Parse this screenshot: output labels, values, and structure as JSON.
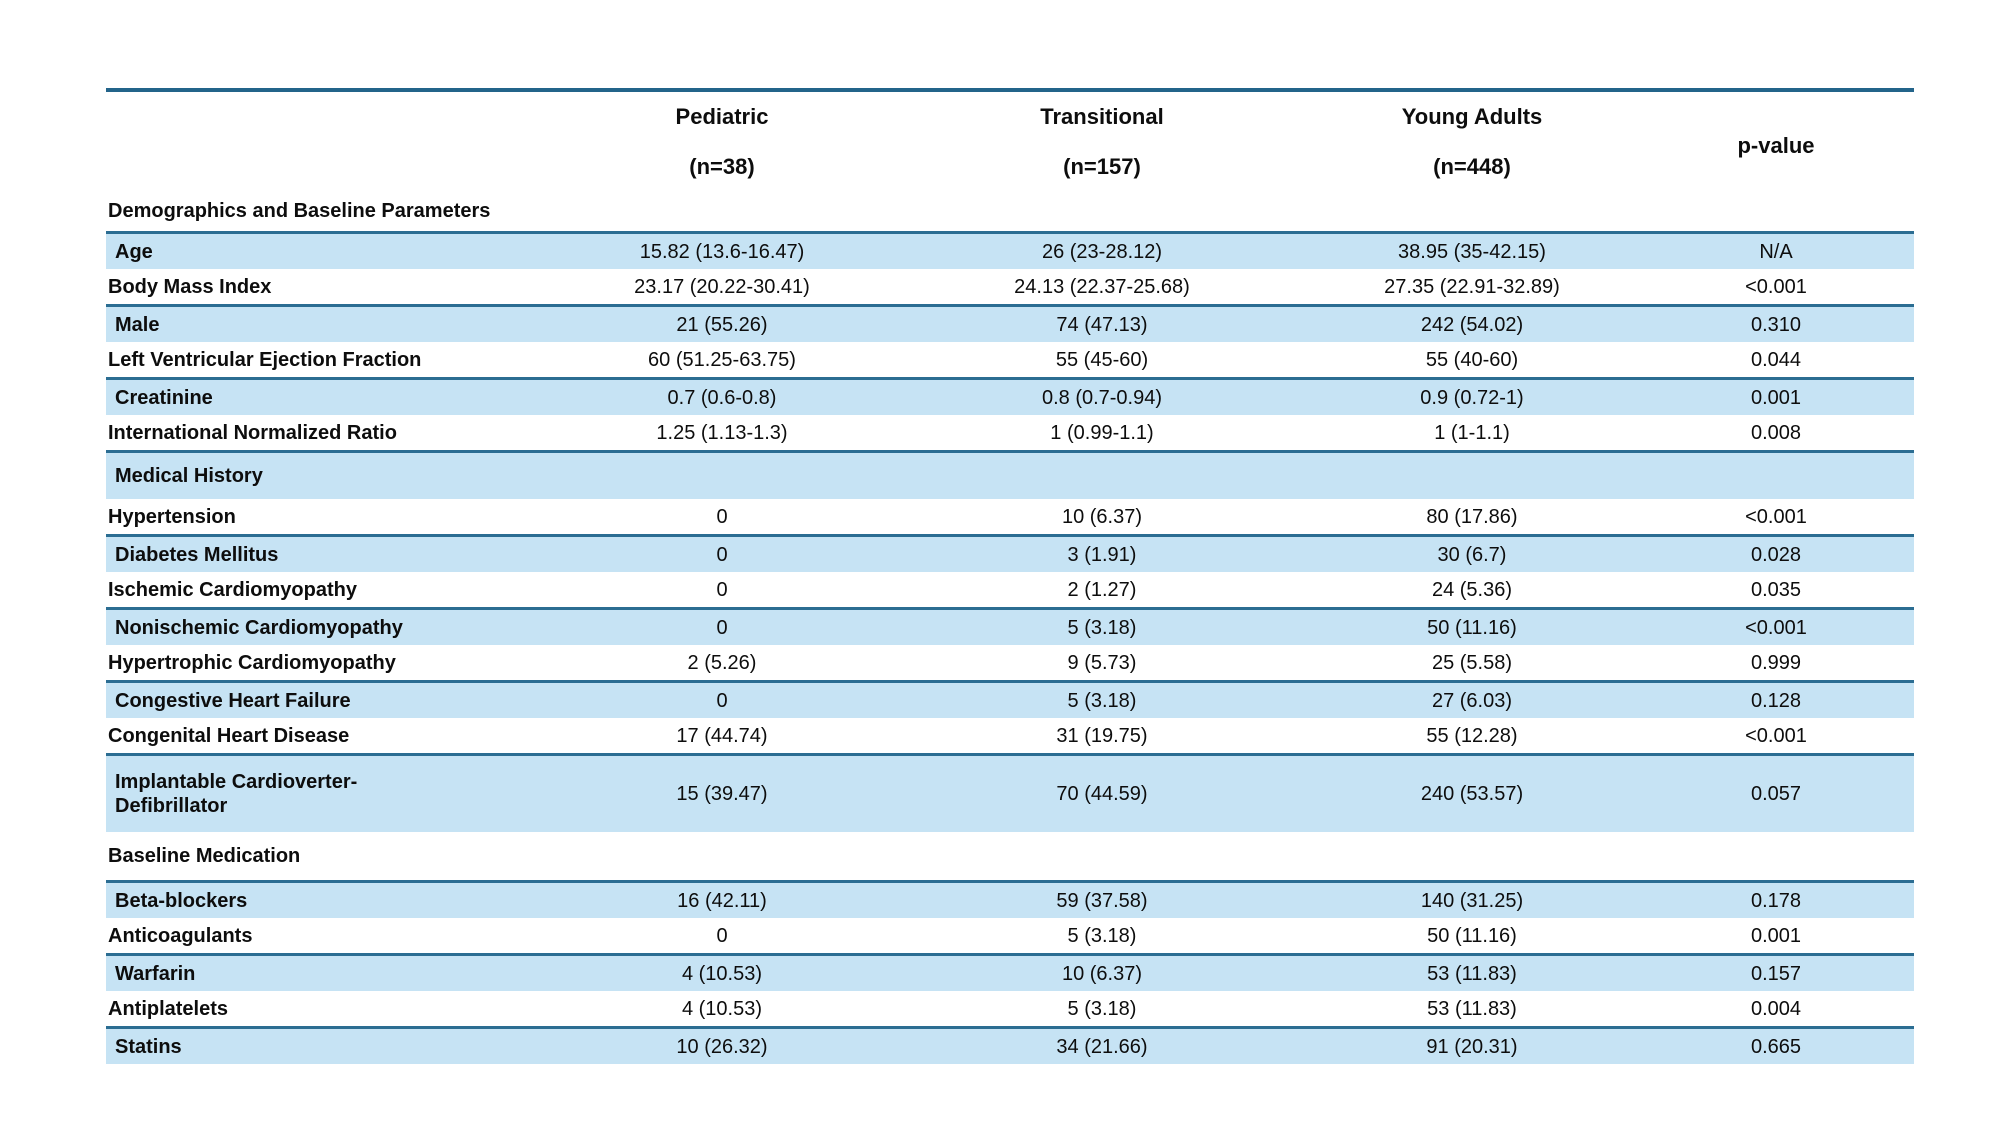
{
  "colors": {
    "row_stripe": "#c6e3f4",
    "rule": "#2b6d92",
    "top_rule": "#23648a",
    "text": "#0d0d0d",
    "background": "#ffffff"
  },
  "table": {
    "columns": [
      {
        "label": "Pediatric",
        "n": "(n=38)"
      },
      {
        "label": "Transitional",
        "n": "(n=157)"
      },
      {
        "label": "Young Adults",
        "n": "(n=448)"
      }
    ],
    "p_value_header": "p-value",
    "sections": [
      {
        "title": "Demographics and Baseline Parameters",
        "shade": "white",
        "rows": [
          {
            "label": "Age",
            "shade": "blue",
            "values": [
              "15.82 (13.6-16.47)",
              "26 (23-28.12)",
              "38.95 (35-42.15)",
              "N/A"
            ]
          },
          {
            "label": "Body Mass Index",
            "shade": "white",
            "values": [
              "23.17 (20.22-30.41)",
              "24.13 (22.37-25.68)",
              "27.35 (22.91-32.89)",
              "<0.001"
            ]
          },
          {
            "label": "Male",
            "shade": "blue",
            "values": [
              "21 (55.26)",
              "74 (47.13)",
              "242 (54.02)",
              "0.310"
            ]
          },
          {
            "label": "Left Ventricular Ejection Fraction",
            "shade": "white",
            "values": [
              "60 (51.25-63.75)",
              "55 (45-60)",
              "55 (40-60)",
              "0.044"
            ]
          },
          {
            "label": "Creatinine",
            "shade": "blue",
            "values": [
              "0.7 (0.6-0.8)",
              "0.8 (0.7-0.94)",
              "0.9 (0.72-1)",
              "0.001"
            ]
          },
          {
            "label": "International Normalized Ratio",
            "shade": "white",
            "values": [
              "1.25 (1.13-1.3)",
              "1 (0.99-1.1)",
              "1 (1-1.1)",
              "0.008"
            ]
          }
        ]
      },
      {
        "title": "Medical History",
        "shade": "blue",
        "rows": [
          {
            "label": "Hypertension",
            "shade": "white",
            "values": [
              "0",
              "10 (6.37)",
              "80 (17.86)",
              "<0.001"
            ]
          },
          {
            "label": "Diabetes Mellitus",
            "shade": "blue",
            "values": [
              "0",
              "3 (1.91)",
              "30 (6.7)",
              "0.028"
            ]
          },
          {
            "label": "Ischemic Cardiomyopathy",
            "shade": "white",
            "values": [
              "0",
              "2 (1.27)",
              "24 (5.36)",
              "0.035"
            ]
          },
          {
            "label": "Nonischemic Cardiomyopathy",
            "shade": "blue",
            "values": [
              "0",
              "5 (3.18)",
              "50 (11.16)",
              "<0.001"
            ]
          },
          {
            "label": "Hypertrophic Cardiomyopathy",
            "shade": "white",
            "values": [
              "2 (5.26)",
              "9 (5.73)",
              "25 (5.58)",
              "0.999"
            ]
          },
          {
            "label": "Congestive Heart Failure",
            "shade": "blue",
            "values": [
              "0",
              "5 (3.18)",
              "27 (6.03)",
              "0.128"
            ]
          },
          {
            "label": "Congenital Heart Disease",
            "shade": "white",
            "values": [
              "17 (44.74)",
              "31 (19.75)",
              "55 (12.28)",
              "<0.001"
            ]
          },
          {
            "label": "Implantable Cardioverter-\nDefibrillator",
            "shade": "blue",
            "tall": true,
            "values": [
              "15 (39.47)",
              "70 (44.59)",
              "240 (53.57)",
              "0.057"
            ]
          }
        ]
      },
      {
        "title": "Baseline Medication",
        "shade": "white-tall",
        "rows": [
          {
            "label": "Beta-blockers",
            "shade": "blue",
            "values": [
              "16 (42.11)",
              "59 (37.58)",
              "140 (31.25)",
              "0.178"
            ]
          },
          {
            "label": "Anticoagulants",
            "shade": "white",
            "values": [
              "0",
              "5 (3.18)",
              "50 (11.16)",
              "0.001"
            ]
          },
          {
            "label": "Warfarin",
            "shade": "blue",
            "values": [
              "4 (10.53)",
              "10 (6.37)",
              "53 (11.83)",
              "0.157"
            ]
          },
          {
            "label": "Antiplatelets",
            "shade": "white",
            "values": [
              "4 (10.53)",
              "5 (3.18)",
              "53 (11.83)",
              "0.004"
            ]
          },
          {
            "label": "Statins",
            "shade": "blue",
            "values": [
              "10 (26.32)",
              "34 (21.66)",
              "91 (20.31)",
              "0.665"
            ]
          }
        ]
      }
    ]
  }
}
